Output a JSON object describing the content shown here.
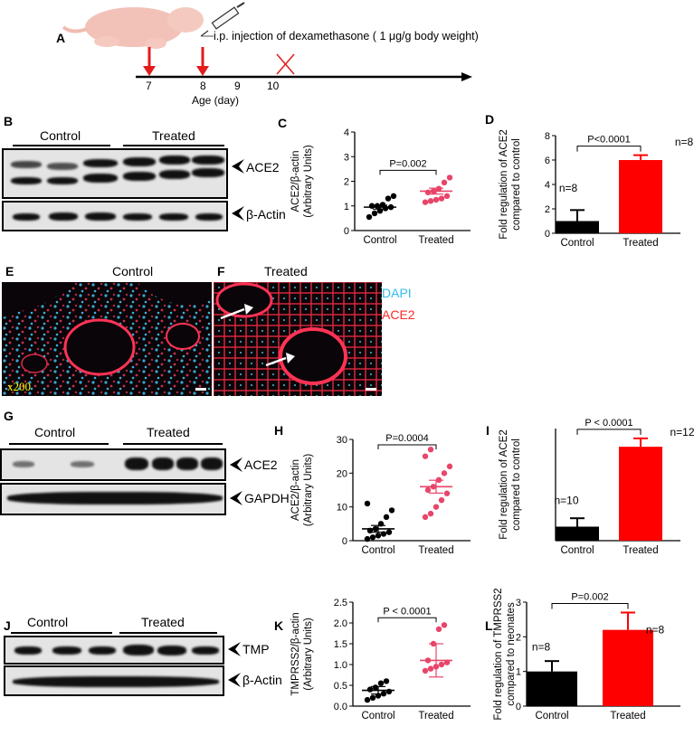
{
  "colors": {
    "control": "#000000",
    "treated": "#ff0000",
    "treated_dots": "#e8456a",
    "dapi": "#33bbee",
    "ace2_stain": "#ff2a2a",
    "magnification": "#ffff00"
  },
  "panelA": {
    "label": "A",
    "injection_text": "i.p. injection of dexamethasone ( 1 μg/g body weight)",
    "days": [
      "7",
      "8",
      "9",
      "10"
    ],
    "xlabel": "Age (day)",
    "icons": [
      "mouse-pup-image",
      "syringe-icon",
      "injection-arrow-icon",
      "stop-x-icon"
    ]
  },
  "panelB": {
    "label": "B",
    "groups": [
      "Control",
      "Treated"
    ],
    "bands": [
      "ACE2",
      "β-Actin"
    ]
  },
  "panelG": {
    "label": "G",
    "groups": [
      "Control",
      "Treated"
    ],
    "bands": [
      "ACE2",
      "GAPDH"
    ]
  },
  "panelJ": {
    "label": "J",
    "groups": [
      "Control",
      "Treated"
    ],
    "bands": [
      "TMP",
      "β-Actin"
    ]
  },
  "panelE": {
    "label": "E",
    "title": "Control",
    "magnification": "x200"
  },
  "panelF": {
    "label": "F",
    "title": "Treated",
    "legend_dapi": "DAPI",
    "legend_ace2": "ACE2"
  },
  "chart_data": [
    {
      "id": "C",
      "type": "scatter",
      "ylabel": "ACE2/β-actin (Arbitrary Units)",
      "ylim": [
        0,
        4
      ],
      "yticks": [
        "0",
        "1",
        "2",
        "3",
        "4"
      ],
      "categories": [
        "Control",
        "Treated"
      ],
      "pvalue": "P=0.002",
      "series": [
        {
          "name": "Control",
          "values": [
            0.55,
            0.7,
            0.8,
            0.9,
            0.95,
            1.0,
            1.0,
            1.05,
            1.3,
            1.4
          ],
          "mean": 0.95,
          "sem": 0.08
        },
        {
          "name": "Treated",
          "values": [
            1.15,
            1.2,
            1.25,
            1.3,
            1.4,
            1.55,
            1.6,
            1.7,
            1.95,
            2.15
          ],
          "mean": 1.6,
          "sem": 0.12
        }
      ]
    },
    {
      "id": "D",
      "type": "bar",
      "ylabel": "Fold regulation of ACE2 compared to control",
      "ylim": [
        0,
        8
      ],
      "yticks": [
        "0",
        "2",
        "4",
        "6",
        "8"
      ],
      "categories": [
        "Control",
        "Treated"
      ],
      "values": [
        1.0,
        6.0
      ],
      "errors": [
        0.9,
        0.4
      ],
      "n_labels": [
        "n=8",
        "n=8"
      ],
      "pvalue": "P<0.0001"
    },
    {
      "id": "H",
      "type": "scatter",
      "ylabel": "ACE2/β-actin (Arbitrary Units)",
      "ylim": [
        0,
        30
      ],
      "yticks": [
        "0",
        "10",
        "20",
        "30"
      ],
      "categories": [
        "Control",
        "Treated"
      ],
      "pvalue": "P=0.0004",
      "series": [
        {
          "name": "Control",
          "values": [
            0.5,
            1,
            1.5,
            2,
            2.5,
            3,
            3.5,
            5,
            7,
            9,
            11
          ],
          "mean": 3.5,
          "sem": 1.0
        },
        {
          "name": "Treated",
          "values": [
            7,
            8,
            10,
            12,
            14,
            15,
            16,
            18,
            20,
            22,
            25,
            27
          ],
          "mean": 16,
          "sem": 1.9
        }
      ]
    },
    {
      "id": "I",
      "type": "bar",
      "ylabel": "Fold regulation of ACE2 compared to control",
      "ylim": [
        0,
        8
      ],
      "categories": [
        "Control",
        "Treated"
      ],
      "values": [
        1.0,
        6.7
      ],
      "errors": [
        0.6,
        0.6
      ],
      "n_labels": [
        "n=10",
        "n=12"
      ],
      "pvalue": "P < 0.0001"
    },
    {
      "id": "K",
      "type": "scatter",
      "ylabel": "TMPRSS2/β-actin (Arbitrary Units)",
      "ylim": [
        0,
        2.5
      ],
      "yticks": [
        "0.0",
        "0.5",
        "1.0",
        "1.5",
        "2.0",
        "2.5"
      ],
      "categories": [
        "Control",
        "Treated"
      ],
      "pvalue": "P < 0.0001",
      "series": [
        {
          "name": "Control",
          "values": [
            0.15,
            0.2,
            0.25,
            0.3,
            0.35,
            0.4,
            0.45,
            0.55,
            0.6
          ],
          "mean": 0.38,
          "sem": 0.09
        },
        {
          "name": "Treated",
          "values": [
            0.85,
            0.9,
            0.95,
            1.0,
            1.05,
            1.1,
            1.5,
            1.85,
            1.95
          ],
          "mean": 1.1,
          "sem": 0.4
        }
      ]
    },
    {
      "id": "L",
      "type": "bar",
      "ylabel": "Fold regulation of TMPRSS2 compared to neonates",
      "ylim": [
        0,
        3
      ],
      "yticks": [
        "0",
        "1",
        "2",
        "3"
      ],
      "categories": [
        "Control",
        "Treated"
      ],
      "values": [
        1.0,
        2.2
      ],
      "errors": [
        0.3,
        0.5
      ],
      "n_labels": [
        "n=8",
        "n=8"
      ],
      "pvalue": "P=0.002"
    }
  ]
}
